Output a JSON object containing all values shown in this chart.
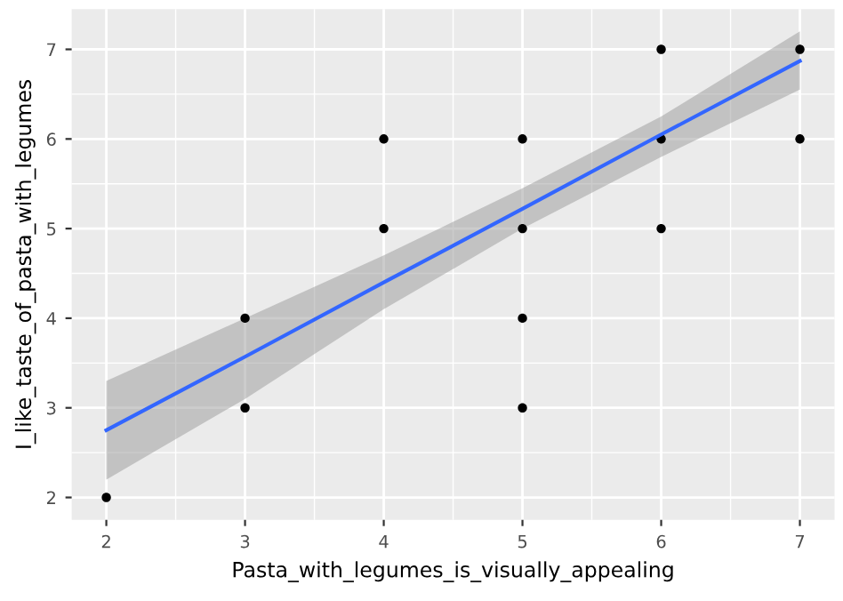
{
  "chart_data": {
    "type": "scatter",
    "xlabel": "Pasta_with_legumes_is_visually_appealing",
    "ylabel": "I_like_taste_of_pasta_with_legumes",
    "xlim": [
      1.75,
      7.25
    ],
    "ylim": [
      1.75,
      7.45
    ],
    "xticks": [
      2,
      3,
      4,
      5,
      6,
      7
    ],
    "yticks": [
      2,
      3,
      4,
      5,
      6,
      7
    ],
    "grid": true,
    "series": [
      {
        "marker": "circle",
        "color": "#000000",
        "x": [
          2,
          3,
          3,
          4,
          4,
          5,
          5,
          5,
          5,
          6,
          6,
          6,
          7,
          7
        ],
        "values": [
          2,
          4,
          3,
          6,
          5,
          6,
          5,
          4,
          3,
          7,
          6,
          5,
          7,
          6
        ]
      },
      {
        "type": "line",
        "color": "#3366ff",
        "x": [
          2,
          3,
          4,
          5,
          6,
          7
        ],
        "values": [
          2.75,
          3.57,
          4.4,
          5.22,
          6.05,
          6.87
        ],
        "lower": [
          2.2,
          3.1,
          4.1,
          5.0,
          5.8,
          6.55
        ],
        "upper": [
          3.3,
          4.0,
          4.7,
          5.45,
          6.25,
          7.2
        ]
      }
    ]
  }
}
